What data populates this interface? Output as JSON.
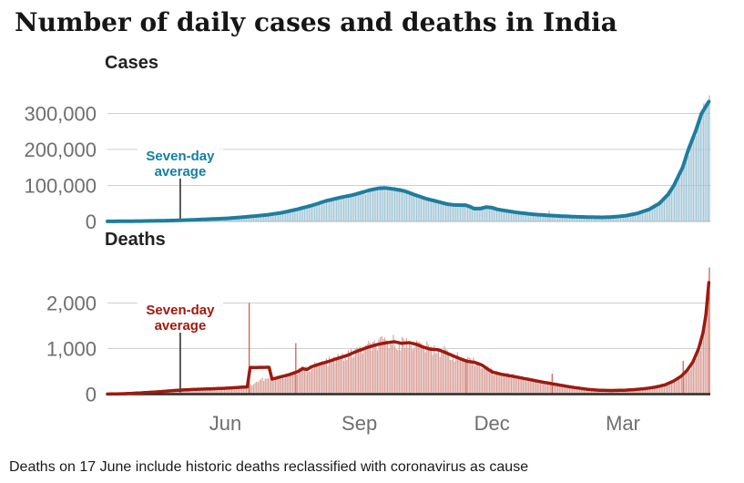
{
  "page": {
    "title": "Number of daily cases and deaths in India",
    "footnote": "Deaths on 17 June include historic deaths reclassified with coronavirus as cause"
  },
  "colors": {
    "grid": "#CFCFCF",
    "axis_text": "#6E6E6E",
    "pointer": "#222222",
    "title_text": "#161616",
    "footnote_text": "#1A1A1A",
    "background": "#FFFFFF"
  },
  "x_axis": {
    "months": [
      {
        "label": "Jun",
        "day": 81
      },
      {
        "label": "Sep",
        "day": 173
      },
      {
        "label": "Dec",
        "day": 264
      },
      {
        "label": "Mar",
        "day": 354
      }
    ]
  },
  "chart_data": [
    {
      "name": "Cases",
      "type": "bar+line",
      "series_label": "Seven-day average",
      "annotation": {
        "lines": [
          "Seven-day",
          "average"
        ],
        "day": 50
      },
      "days": 414,
      "ylim": [
        0,
        355000
      ],
      "yticks": [
        {
          "value": 0,
          "label": "0"
        },
        {
          "value": 100000,
          "label": "100,000"
        },
        {
          "value": 200000,
          "label": "200,000"
        },
        {
          "value": 300000,
          "label": "300,000"
        }
      ],
      "colors": {
        "line": "#1E7D9E",
        "bar": "#A5C8D8",
        "spike": "#8FBDD1",
        "annotation": "#1380A1",
        "baseline": "#B3B3B3"
      },
      "bar_jitter": 0.09,
      "bar_spikes": [
        [
          303,
          30000
        ],
        [
          413,
          350000
        ]
      ],
      "avg_points": [
        [
          0,
          200
        ],
        [
          12,
          600
        ],
        [
          24,
          1100
        ],
        [
          36,
          1900
        ],
        [
          48,
          2900
        ],
        [
          60,
          4600
        ],
        [
          70,
          6400
        ],
        [
          81,
          8300
        ],
        [
          90,
          11000
        ],
        [
          100,
          14500
        ],
        [
          110,
          18500
        ],
        [
          120,
          24500
        ],
        [
          130,
          33500
        ],
        [
          140,
          44000
        ],
        [
          150,
          57000
        ],
        [
          160,
          66500
        ],
        [
          168,
          73000
        ],
        [
          173,
          78500
        ],
        [
          180,
          87000
        ],
        [
          186,
          92000
        ],
        [
          191,
          93000
        ],
        [
          197,
          90000
        ],
        [
          204,
          84500
        ],
        [
          211,
          74000
        ],
        [
          219,
          63000
        ],
        [
          226,
          56000
        ],
        [
          233,
          48500
        ],
        [
          238,
          45800
        ],
        [
          246,
          45200
        ],
        [
          249,
          41000
        ],
        [
          252,
          35500
        ],
        [
          256,
          35800
        ],
        [
          260,
          39800
        ],
        [
          264,
          38500
        ],
        [
          268,
          33500
        ],
        [
          274,
          29500
        ],
        [
          282,
          24500
        ],
        [
          292,
          20000
        ],
        [
          302,
          17000
        ],
        [
          312,
          14800
        ],
        [
          322,
          13000
        ],
        [
          332,
          11900
        ],
        [
          340,
          11400
        ],
        [
          348,
          12800
        ],
        [
          356,
          16000
        ],
        [
          364,
          22500
        ],
        [
          372,
          33500
        ],
        [
          379,
          50000
        ],
        [
          385,
          75000
        ],
        [
          389,
          100000
        ],
        [
          395,
          150000
        ],
        [
          399,
          200000
        ],
        [
          404,
          252000
        ],
        [
          408,
          300000
        ],
        [
          413,
          333000
        ]
      ]
    },
    {
      "name": "Deaths",
      "type": "bar+line",
      "series_label": "Seven-day average",
      "annotation": {
        "lines": [
          "Seven-day",
          "average"
        ],
        "day": 50
      },
      "days": 414,
      "ylim": [
        0,
        2800
      ],
      "yticks": [
        {
          "value": 0,
          "label": "0"
        },
        {
          "value": 1000,
          "label": "1,000"
        },
        {
          "value": 2000,
          "label": "2,000"
        }
      ],
      "colors": {
        "line": "#9B1B10",
        "bar": "#D9A29B",
        "spike": "#C8503C",
        "annotation": "#A1190E",
        "baseline": "#2B2B2B"
      },
      "bar_jitter": 0.15,
      "bar_spikes": [
        [
          97,
          2003
        ],
        [
          129,
          1120
        ],
        [
          246,
          770
        ],
        [
          305,
          450
        ],
        [
          395,
          730
        ],
        [
          413,
          2780
        ]
      ],
      "avg_points": [
        [
          0,
          2
        ],
        [
          12,
          10
        ],
        [
          24,
          30
        ],
        [
          36,
          55
        ],
        [
          48,
          85
        ],
        [
          60,
          105
        ],
        [
          72,
          118
        ],
        [
          81,
          130
        ],
        [
          90,
          148
        ],
        [
          96,
          160
        ],
        [
          98,
          585
        ],
        [
          111,
          590
        ],
        [
          113,
          330
        ],
        [
          119,
          380
        ],
        [
          125,
          430
        ],
        [
          131,
          500
        ],
        [
          134,
          560
        ],
        [
          137,
          540
        ],
        [
          140,
          600
        ],
        [
          146,
          665
        ],
        [
          152,
          720
        ],
        [
          158,
          785
        ],
        [
          165,
          855
        ],
        [
          172,
          950
        ],
        [
          179,
          1030
        ],
        [
          186,
          1095
        ],
        [
          192,
          1130
        ],
        [
          197,
          1150
        ],
        [
          202,
          1115
        ],
        [
          207,
          1130
        ],
        [
          212,
          1095
        ],
        [
          217,
          1030
        ],
        [
          222,
          985
        ],
        [
          227,
          975
        ],
        [
          232,
          915
        ],
        [
          237,
          845
        ],
        [
          242,
          780
        ],
        [
          247,
          720
        ],
        [
          252,
          700
        ],
        [
          257,
          640
        ],
        [
          264,
          490
        ],
        [
          270,
          440
        ],
        [
          276,
          405
        ],
        [
          282,
          370
        ],
        [
          290,
          320
        ],
        [
          298,
          270
        ],
        [
          306,
          225
        ],
        [
          314,
          180
        ],
        [
          322,
          140
        ],
        [
          330,
          105
        ],
        [
          338,
          85
        ],
        [
          346,
          80
        ],
        [
          354,
          85
        ],
        [
          362,
          100
        ],
        [
          370,
          125
        ],
        [
          377,
          160
        ],
        [
          383,
          205
        ],
        [
          389,
          290
        ],
        [
          394,
          395
        ],
        [
          398,
          520
        ],
        [
          402,
          705
        ],
        [
          406,
          1000
        ],
        [
          409,
          1350
        ],
        [
          411,
          1750
        ],
        [
          413,
          2450
        ]
      ],
      "bar_points": [
        [
          0,
          2
        ],
        [
          12,
          10
        ],
        [
          24,
          30
        ],
        [
          36,
          55
        ],
        [
          48,
          85
        ],
        [
          60,
          105
        ],
        [
          72,
          118
        ],
        [
          81,
          130
        ],
        [
          90,
          148
        ],
        [
          96,
          160
        ],
        [
          105,
          320
        ],
        [
          113,
          330
        ],
        [
          119,
          380
        ],
        [
          125,
          430
        ],
        [
          131,
          500
        ],
        [
          134,
          560
        ],
        [
          137,
          540
        ],
        [
          140,
          600
        ],
        [
          146,
          665
        ],
        [
          152,
          720
        ],
        [
          158,
          785
        ],
        [
          165,
          855
        ],
        [
          172,
          950
        ],
        [
          179,
          1030
        ],
        [
          186,
          1095
        ],
        [
          192,
          1130
        ],
        [
          197,
          1150
        ],
        [
          202,
          1115
        ],
        [
          207,
          1130
        ],
        [
          212,
          1095
        ],
        [
          217,
          1030
        ],
        [
          222,
          985
        ],
        [
          227,
          975
        ],
        [
          232,
          915
        ],
        [
          237,
          845
        ],
        [
          242,
          780
        ],
        [
          247,
          720
        ],
        [
          252,
          700
        ],
        [
          257,
          640
        ],
        [
          264,
          490
        ],
        [
          270,
          440
        ],
        [
          276,
          405
        ],
        [
          282,
          370
        ],
        [
          290,
          320
        ],
        [
          298,
          270
        ],
        [
          306,
          225
        ],
        [
          314,
          180
        ],
        [
          322,
          140
        ],
        [
          330,
          105
        ],
        [
          338,
          85
        ],
        [
          346,
          80
        ],
        [
          354,
          85
        ],
        [
          362,
          100
        ],
        [
          370,
          125
        ],
        [
          377,
          160
        ],
        [
          383,
          205
        ],
        [
          389,
          290
        ],
        [
          394,
          395
        ],
        [
          398,
          520
        ],
        [
          402,
          705
        ],
        [
          406,
          1000
        ],
        [
          409,
          1350
        ],
        [
          411,
          1750
        ],
        [
          413,
          2450
        ]
      ]
    }
  ]
}
